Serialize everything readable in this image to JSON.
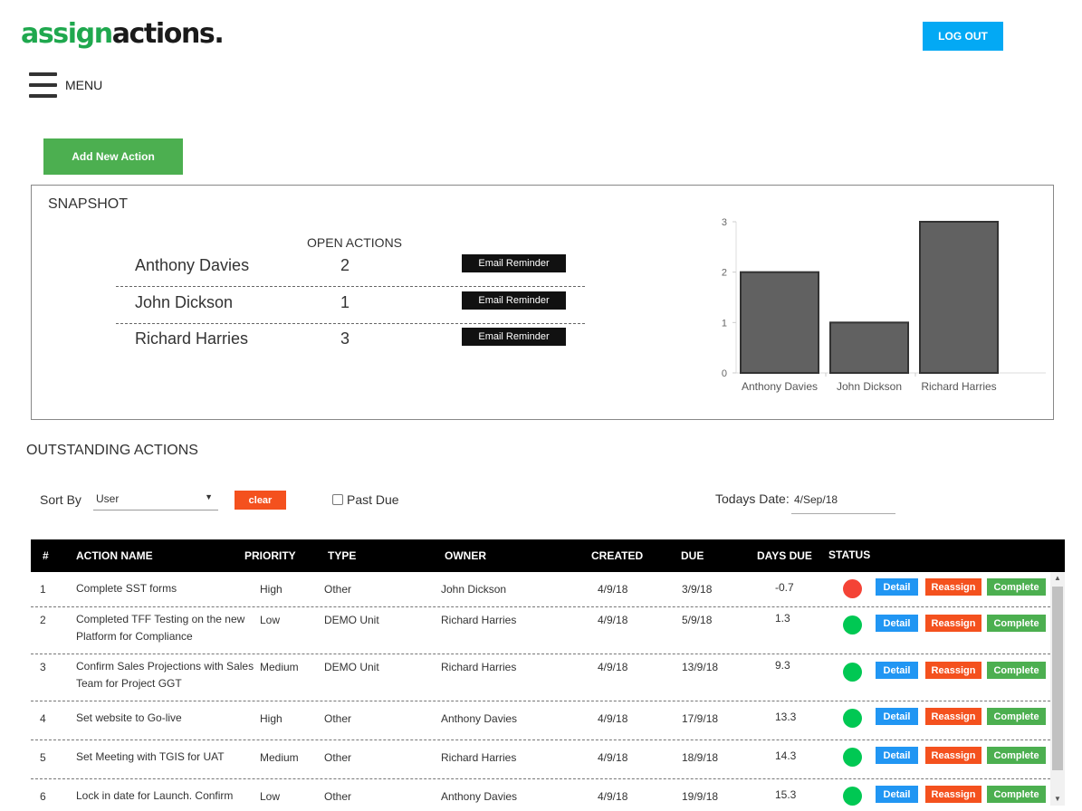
{
  "brand": {
    "logo_green": "assign",
    "logo_dark": "actions."
  },
  "header": {
    "logout_label": "LOG OUT",
    "menu_label": "MENU"
  },
  "actions": {
    "add_label": "Add New Action"
  },
  "snapshot": {
    "title": "SNAPSHOT",
    "open_actions_header": "OPEN ACTIONS",
    "email_label": "Email Reminder",
    "rows": [
      {
        "name": "Anthony Davies",
        "count": "2"
      },
      {
        "name": "John Dickson",
        "count": "1"
      },
      {
        "name": "Richard Harries",
        "count": "3"
      }
    ]
  },
  "chart_data": {
    "type": "bar",
    "categories": [
      "Anthony Davies",
      "John Dickson",
      "Richard Harries"
    ],
    "values": [
      2,
      1,
      3
    ],
    "ylim": [
      0,
      3
    ],
    "yticks": [
      0,
      1,
      2,
      3
    ],
    "bar_color": "#616161",
    "grid": false,
    "title": "",
    "xlabel": "",
    "ylabel": ""
  },
  "outstanding": {
    "title": "OUTSTANDING ACTIONS",
    "sort_label": "Sort By",
    "sort_value": "User",
    "clear_label": "clear",
    "past_due_label": "Past Due",
    "today_label": "Todays Date:",
    "today_value": "4/Sep/18"
  },
  "table": {
    "headers": [
      "#",
      "ACTION NAME",
      "PRIORITY",
      "TYPE",
      "OWNER",
      "CREATED",
      "DUE",
      "DAYS DUE",
      "STATUS"
    ],
    "buttons": {
      "detail": "Detail",
      "reassign": "Reassign",
      "complete": "Complete"
    },
    "status_colors": {
      "overdue": "#f44336",
      "ok": "#00c853"
    },
    "rows": [
      {
        "num": "1",
        "name": "Complete SST forms",
        "priority": "High",
        "type": "Other",
        "owner": "John Dickson",
        "created": "4/9/18",
        "due": "3/9/18",
        "days_due": "-0.7",
        "status": "overdue"
      },
      {
        "num": "2",
        "name": "Completed TFF Testing on the new Platform for Compliance",
        "priority": "Low",
        "type": "DEMO Unit",
        "owner": "Richard Harries",
        "created": "4/9/18",
        "due": "5/9/18",
        "days_due": "1.3",
        "status": "ok"
      },
      {
        "num": "3",
        "name": "Confirm Sales Projections with Sales Team for Project GGT",
        "priority": "Medium",
        "type": "DEMO Unit",
        "owner": "Richard Harries",
        "created": "4/9/18",
        "due": "13/9/18",
        "days_due": "9.3",
        "status": "ok"
      },
      {
        "num": "4",
        "name": "Set website to Go-live",
        "priority": "High",
        "type": "Other",
        "owner": "Anthony Davies",
        "created": "4/9/18",
        "due": "17/9/18",
        "days_due": "13.3",
        "status": "ok"
      },
      {
        "num": "5",
        "name": "Set Meeting with TGIS for UAT",
        "priority": "Medium",
        "type": "Other",
        "owner": "Richard Harries",
        "created": "4/9/18",
        "due": "18/9/18",
        "days_due": "14.3",
        "status": "ok"
      },
      {
        "num": "6",
        "name": "Lock in date for Launch. Confirm",
        "priority": "Low",
        "type": "Other",
        "owner": "Anthony Davies",
        "created": "4/9/18",
        "due": "19/9/18",
        "days_due": "15.3",
        "status": "ok"
      }
    ]
  }
}
